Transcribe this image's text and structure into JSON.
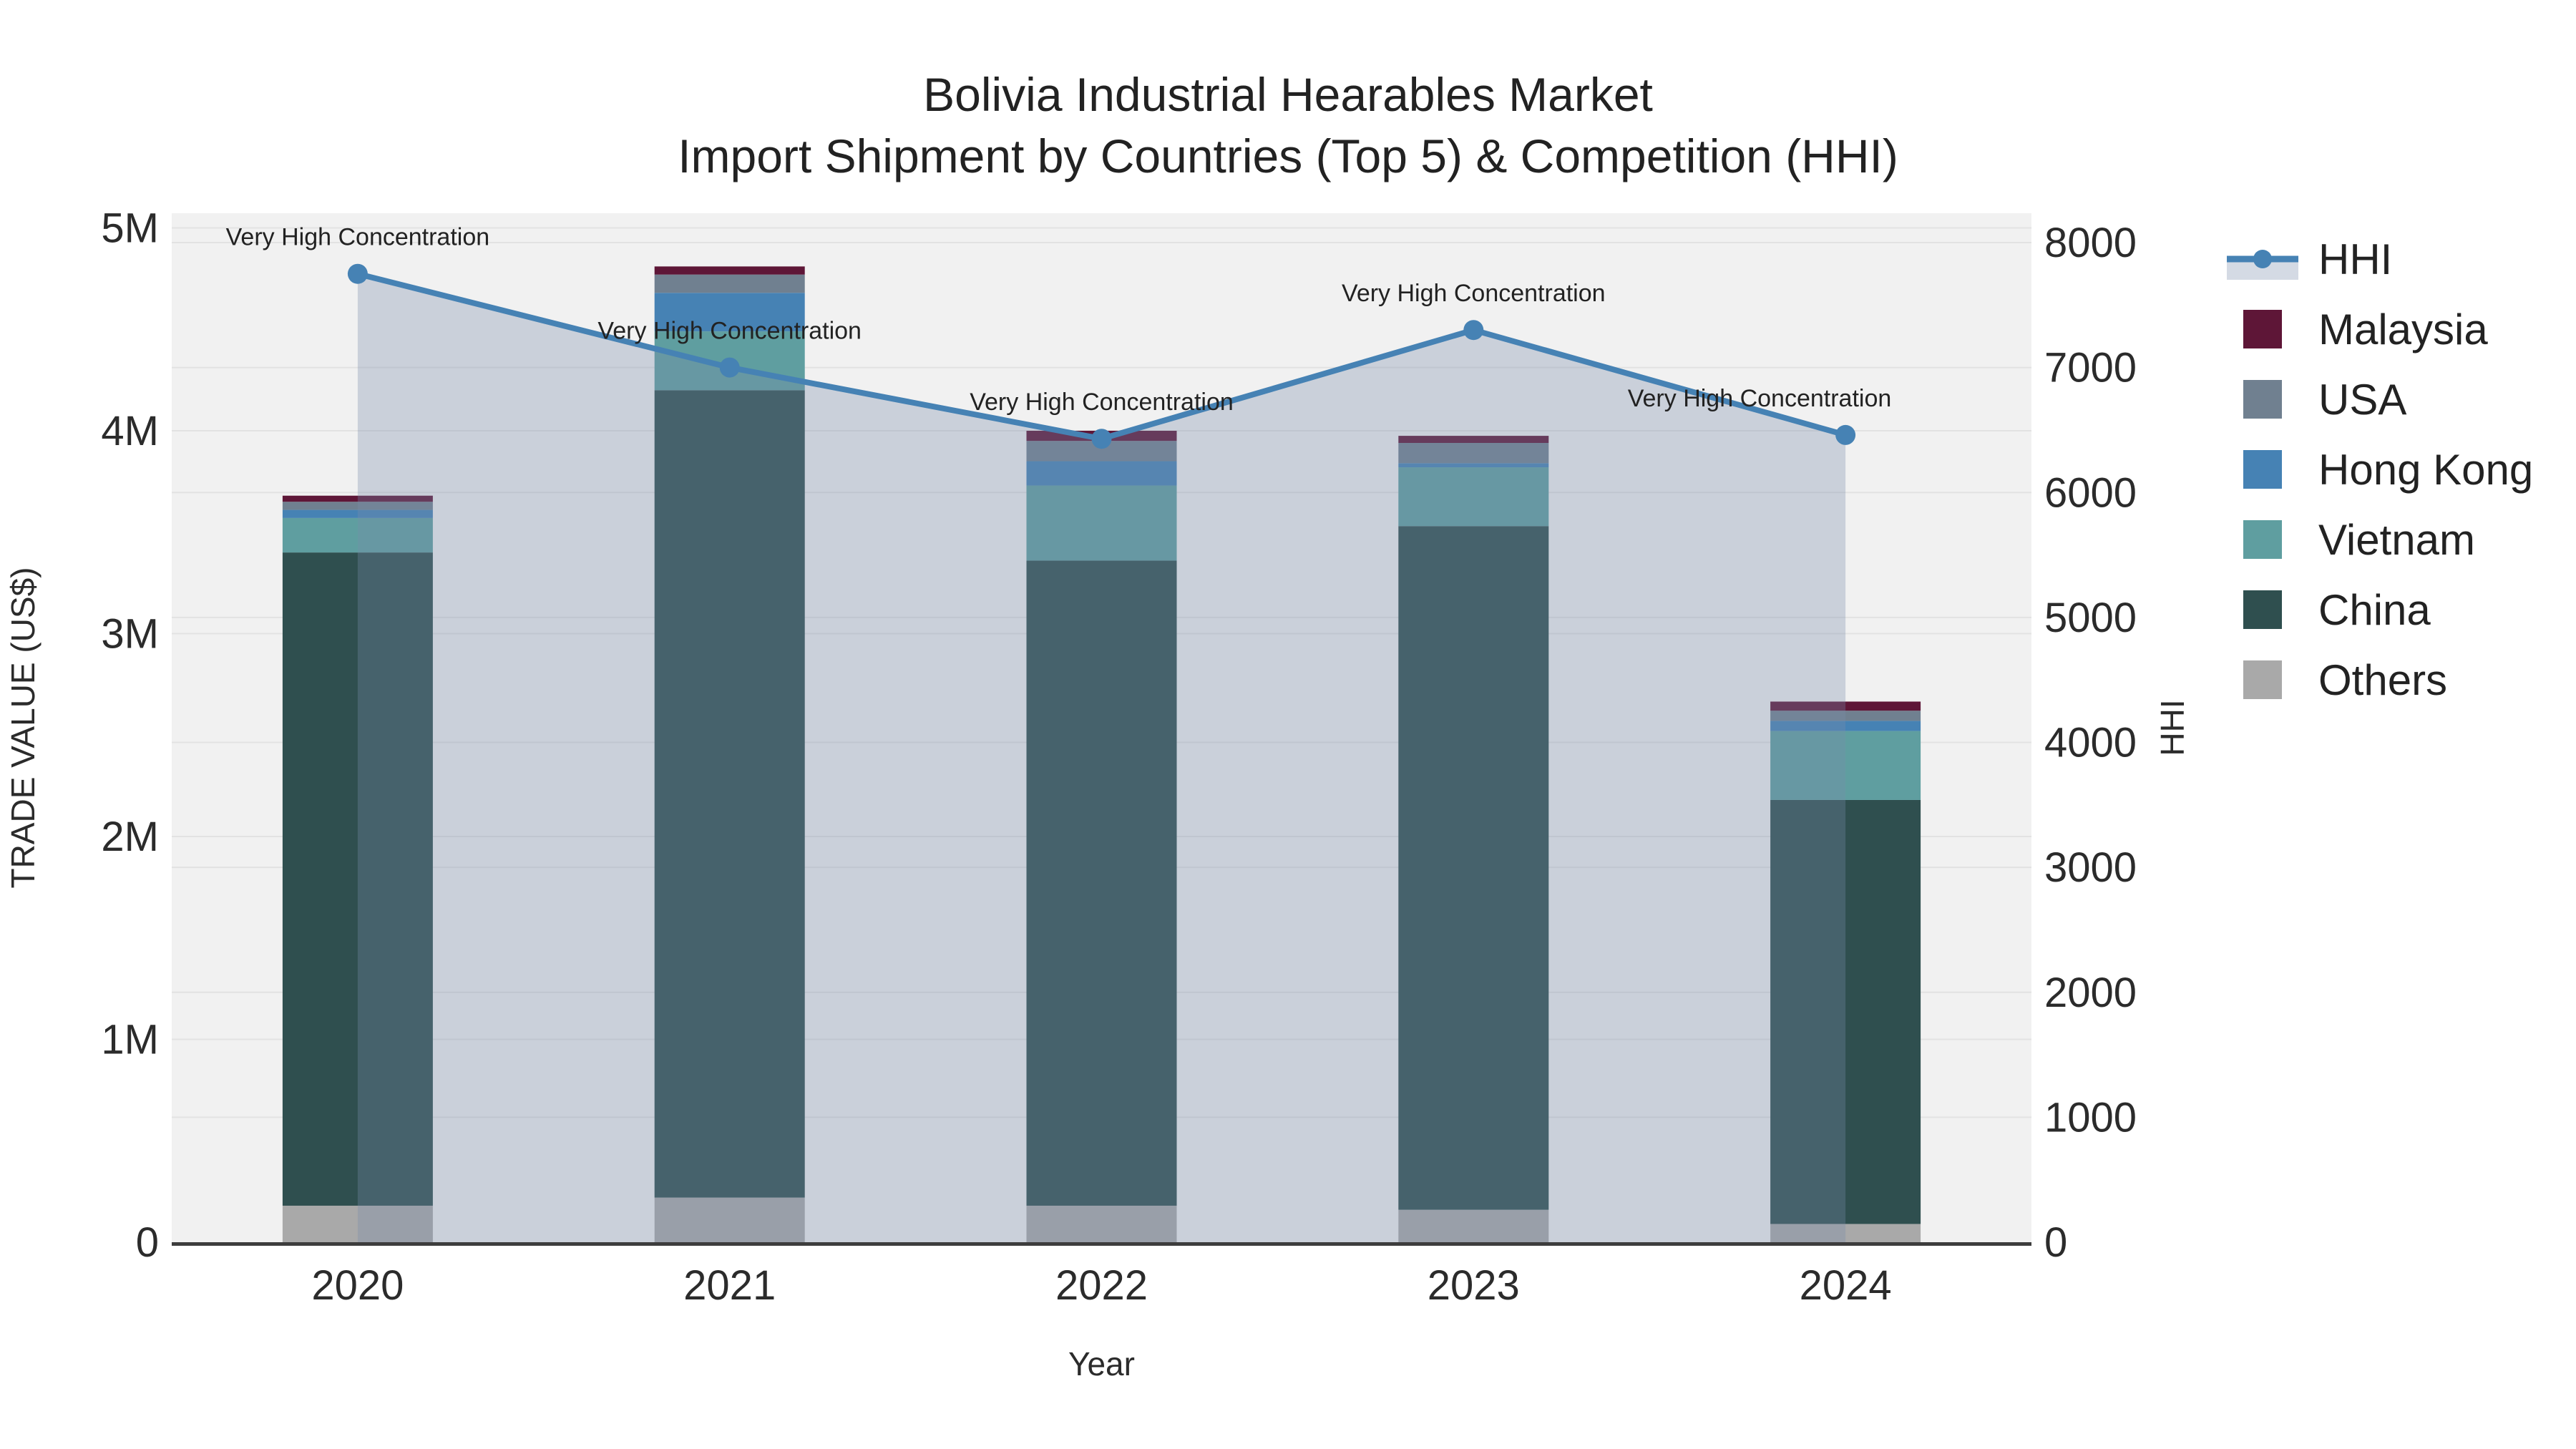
{
  "title": {
    "line1": "Bolivia Industrial Hearables Market",
    "line2": "Import Shipment by Countries (Top 5) & Competition (HHI)"
  },
  "chart_data": {
    "type": "bar+line",
    "categories": [
      "2020",
      "2021",
      "2022",
      "2023",
      "2024"
    ],
    "stack_order_note": "series listed bottom-to-top of the stacked bars, values in US$",
    "series": [
      {
        "name": "Others",
        "color": "#a9a9a9",
        "values": [
          180000,
          220000,
          180000,
          160000,
          90000
        ]
      },
      {
        "name": "China",
        "color": "#2f4f4f",
        "values": [
          3220000,
          3980000,
          3180000,
          3370000,
          2090000
        ]
      },
      {
        "name": "Vietnam",
        "color": "#5f9ea0",
        "values": [
          170000,
          290000,
          370000,
          290000,
          340000
        ]
      },
      {
        "name": "Hong Kong",
        "color": "#4682b4",
        "values": [
          40000,
          190000,
          120000,
          20000,
          50000
        ]
      },
      {
        "name": "USA",
        "color": "#708090",
        "values": [
          40000,
          90000,
          100000,
          100000,
          50000
        ]
      },
      {
        "name": "Malaysia",
        "color": "#5e1637",
        "values": [
          30000,
          40000,
          50000,
          35000,
          45000
        ]
      }
    ],
    "hhi": {
      "name": "HHI",
      "values": [
        7750,
        7000,
        6430,
        7300,
        6460
      ],
      "line_color": "#4682b4",
      "fill_color": "rgba(122, 140, 170, 0.32)"
    },
    "annotations": [
      "Very High Concentration",
      "Very High Concentration",
      "Very High Concentration",
      "Very High Concentration",
      "Very High Concentration"
    ],
    "left_axis": {
      "title": "TRADE VALUE (US$)",
      "tick_labels": [
        "0",
        "1M",
        "2M",
        "3M",
        "4M",
        "5M"
      ],
      "ylim": [
        0,
        5000000
      ]
    },
    "right_axis": {
      "title": "HHI",
      "tick_labels": [
        "0",
        "1000",
        "2000",
        "3000",
        "4000",
        "5000",
        "6000",
        "7000",
        "8000"
      ],
      "ylim": [
        0,
        8000
      ]
    },
    "x_axis": {
      "title": "Year"
    },
    "plot_bg": "#f1f1f1",
    "grid_color": "#e2e2e2",
    "axis_line_color": "#3d3d3d",
    "label_color": "#2b2b2b",
    "grid_on": true,
    "legend_position": "right"
  },
  "legend": {
    "items": [
      {
        "label": "HHI",
        "type": "line",
        "color": "#4682b4",
        "fill": "rgba(122,140,170,0.32)"
      },
      {
        "label": "Malaysia",
        "type": "box",
        "color": "#5e1637"
      },
      {
        "label": "USA",
        "type": "box",
        "color": "#708090"
      },
      {
        "label": "Hong Kong",
        "type": "box",
        "color": "#4682b4"
      },
      {
        "label": "Vietnam",
        "type": "box",
        "color": "#5f9ea0"
      },
      {
        "label": "China",
        "type": "box",
        "color": "#2f4f4f"
      },
      {
        "label": "Others",
        "type": "box",
        "color": "#a9a9a9"
      }
    ]
  }
}
